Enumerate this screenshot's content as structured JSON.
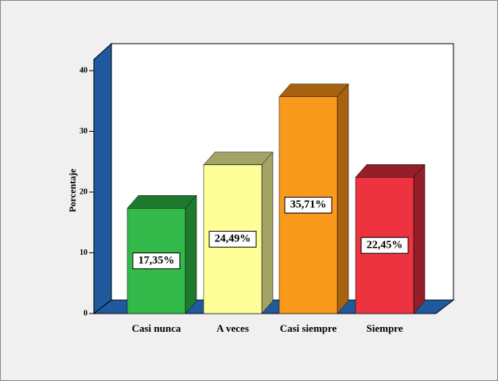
{
  "chart_data": {
    "type": "bar3d",
    "y_label": "Porcentaje",
    "categories": [
      "Casi nunca",
      "A veces",
      "Casi siempre",
      "Siempre"
    ],
    "values": [
      17.35,
      24.49,
      35.71,
      22.45
    ],
    "value_labels": [
      "17,35%",
      "24,49%",
      "35,71%",
      "22,45%"
    ],
    "colors": [
      "#33b84a",
      "#ffff99",
      "#f99a1c",
      "#ee3340"
    ],
    "side_colors": [
      "#1e7a2e",
      "#a3a366",
      "#a8620f",
      "#951f28"
    ],
    "ylim": [
      0,
      42
    ],
    "yticks": [
      0,
      10,
      20,
      30,
      40
    ]
  }
}
